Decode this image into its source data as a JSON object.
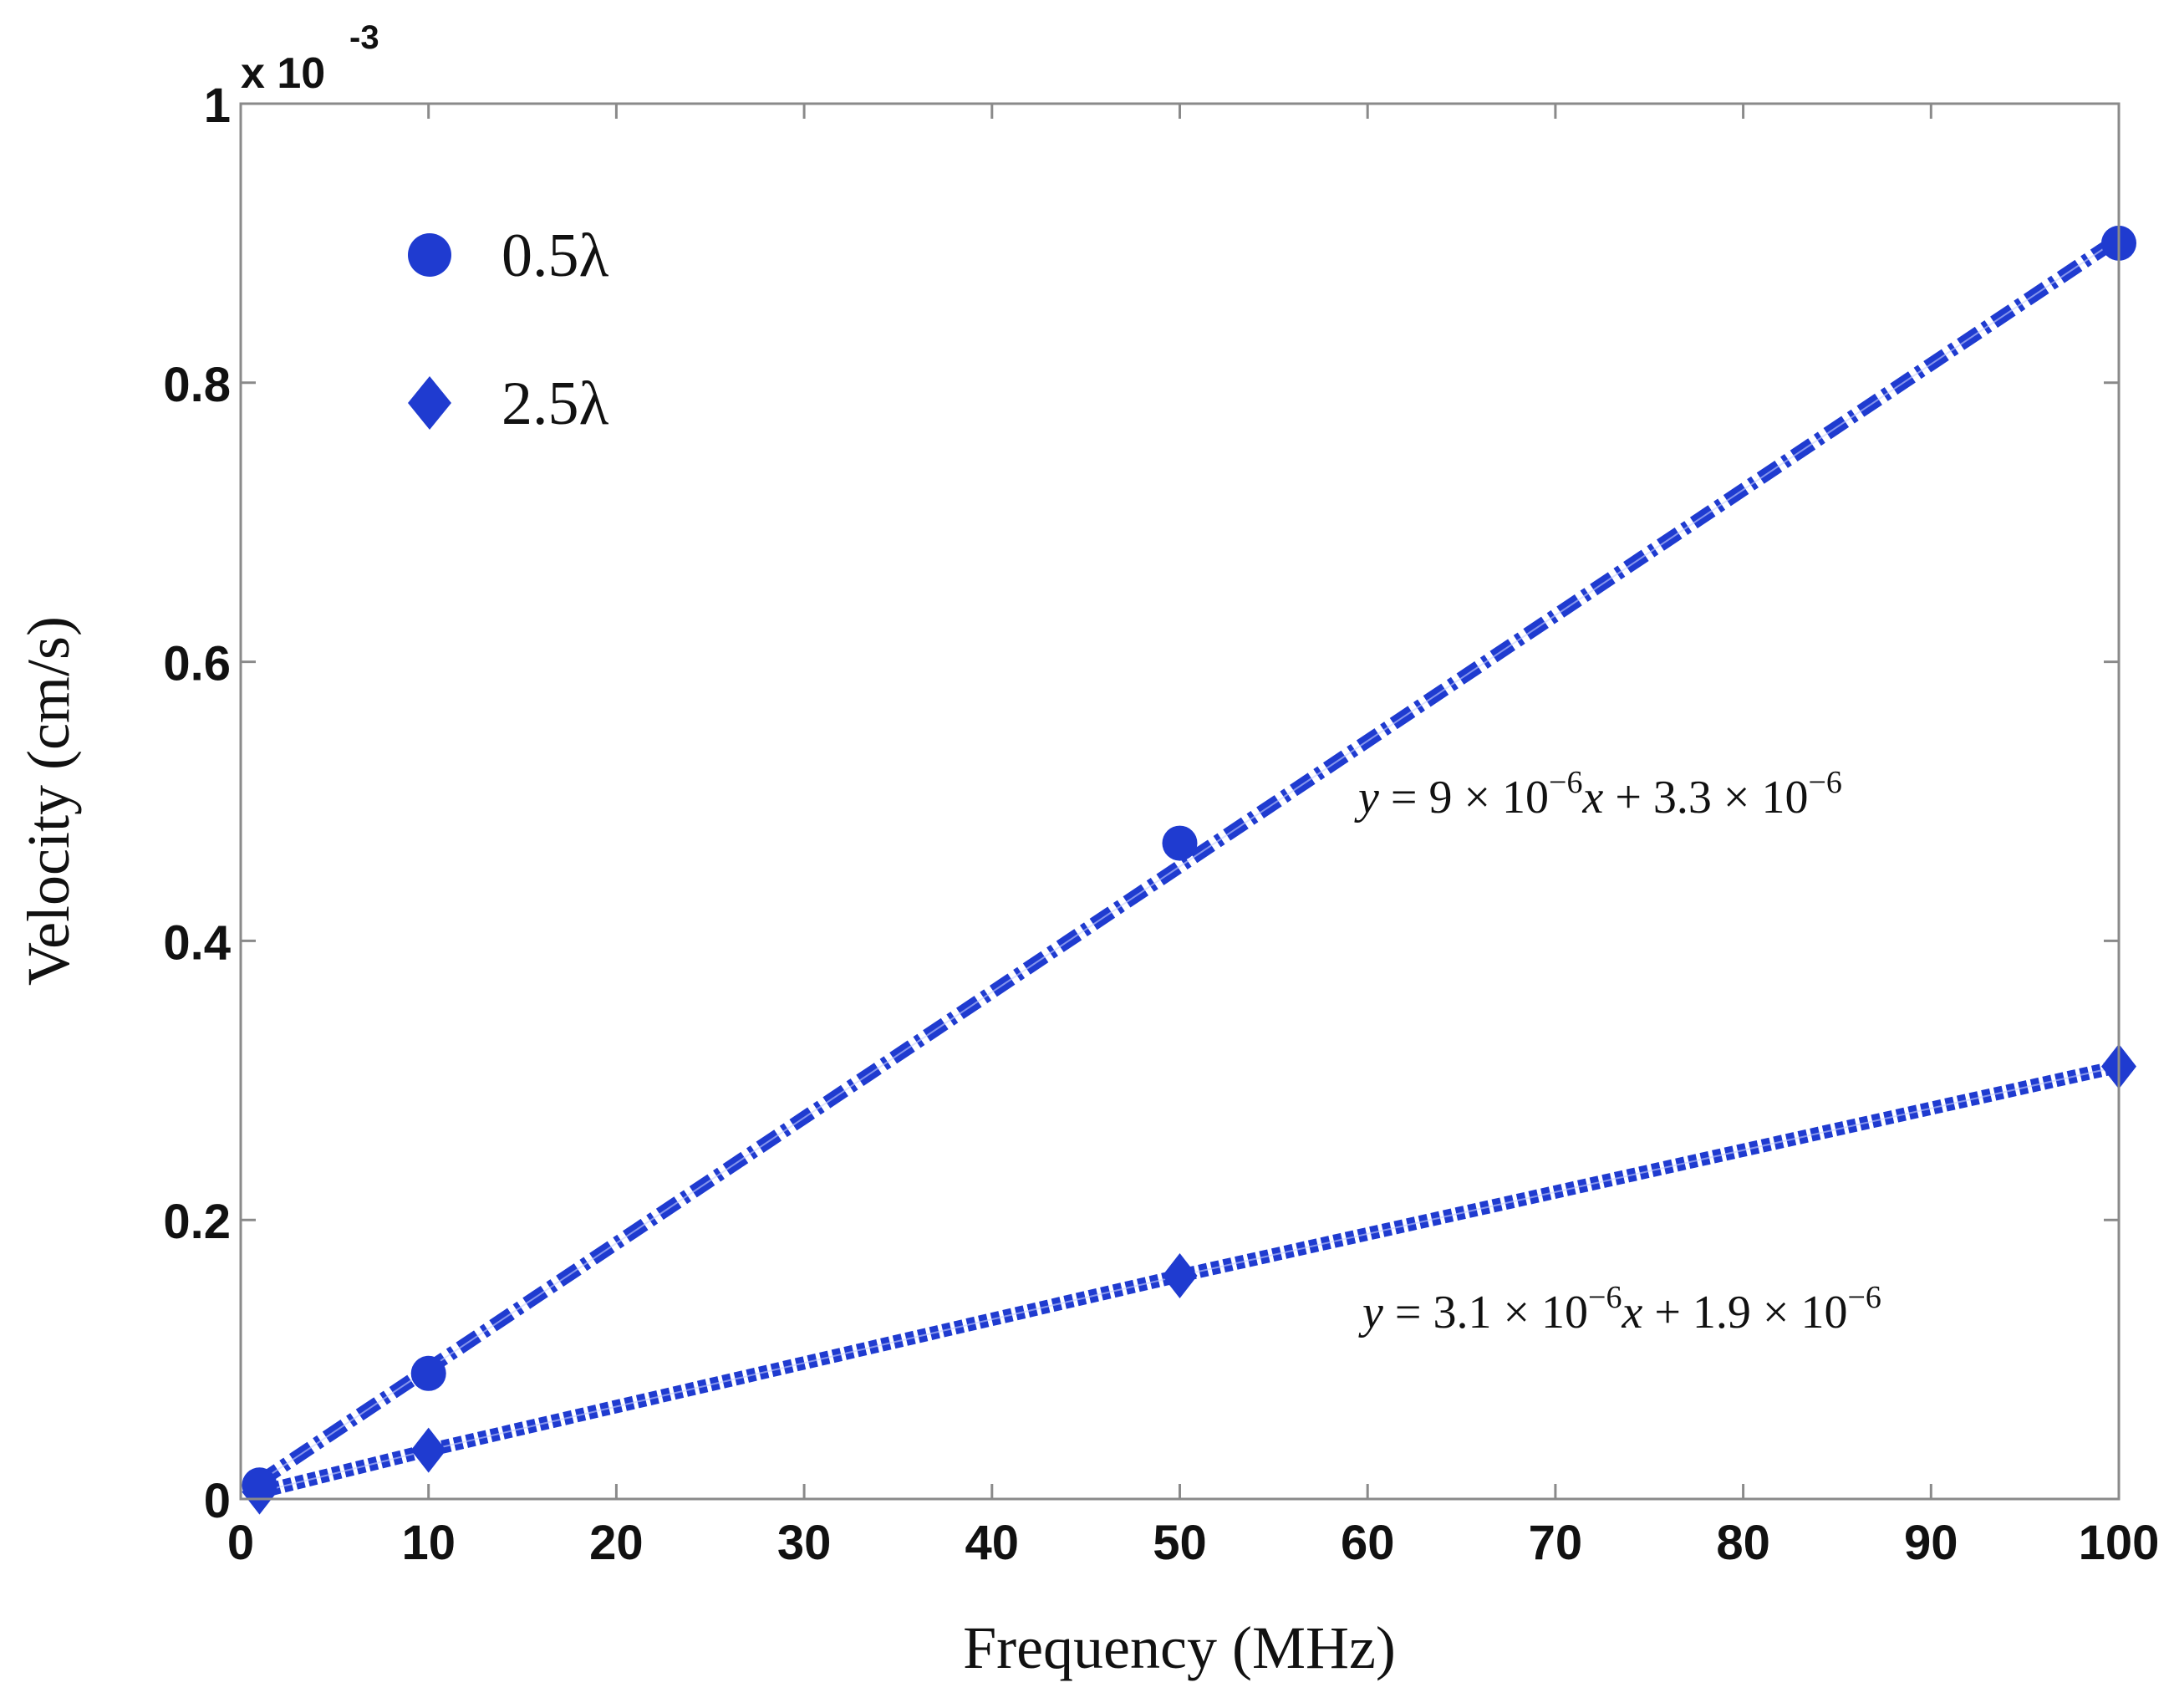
{
  "chart_data": {
    "type": "line",
    "title": "",
    "xlabel": "Frequency (MHz)",
    "ylabel": "Velocity (cm/s)",
    "xlim": [
      0,
      100
    ],
    "ylim": [
      0,
      1
    ],
    "y_multiplier_label": "x 10",
    "y_multiplier_exponent": "-3",
    "x_ticks": [
      "0",
      "10",
      "20",
      "30",
      "40",
      "50",
      "60",
      "70",
      "80",
      "90",
      "100"
    ],
    "y_ticks": [
      "0",
      "0.2",
      "0.4",
      "0.6",
      "0.8",
      "1"
    ],
    "x_tick_values": [
      0,
      10,
      20,
      30,
      40,
      50,
      60,
      70,
      80,
      90,
      100
    ],
    "y_tick_values": [
      0,
      0.2,
      0.4,
      0.6,
      0.8,
      1
    ],
    "grid": false,
    "legend_position": "top-left",
    "series": [
      {
        "name": "0.5λ",
        "marker": "circle",
        "line_style": "dash-dot",
        "color": "#1f3bd0",
        "x": [
          1,
          10,
          50,
          100
        ],
        "y": [
          0.01,
          0.09,
          0.47,
          0.9
        ],
        "fit_line": {
          "x": [
            1,
            100
          ],
          "y": [
            0.0123,
            0.9033
          ]
        },
        "equation": {
          "y": "y",
          "eq": " = 9 × 10",
          "exp1": "−6",
          "x": "x",
          "plus": " + 3.3 × 10",
          "exp2": "−6"
        }
      },
      {
        "name": "2.5λ",
        "marker": "diamond",
        "line_style": "dotted",
        "color": "#1f3bd0",
        "x": [
          1,
          10,
          50,
          100
        ],
        "y": [
          0.005,
          0.035,
          0.16,
          0.31
        ],
        "equation": {
          "y": "y",
          "eq": " = 3.1 × 10",
          "exp1": "−6",
          "x": "x",
          "plus": " + 1.9 × 10",
          "exp2": "−6"
        }
      }
    ]
  }
}
